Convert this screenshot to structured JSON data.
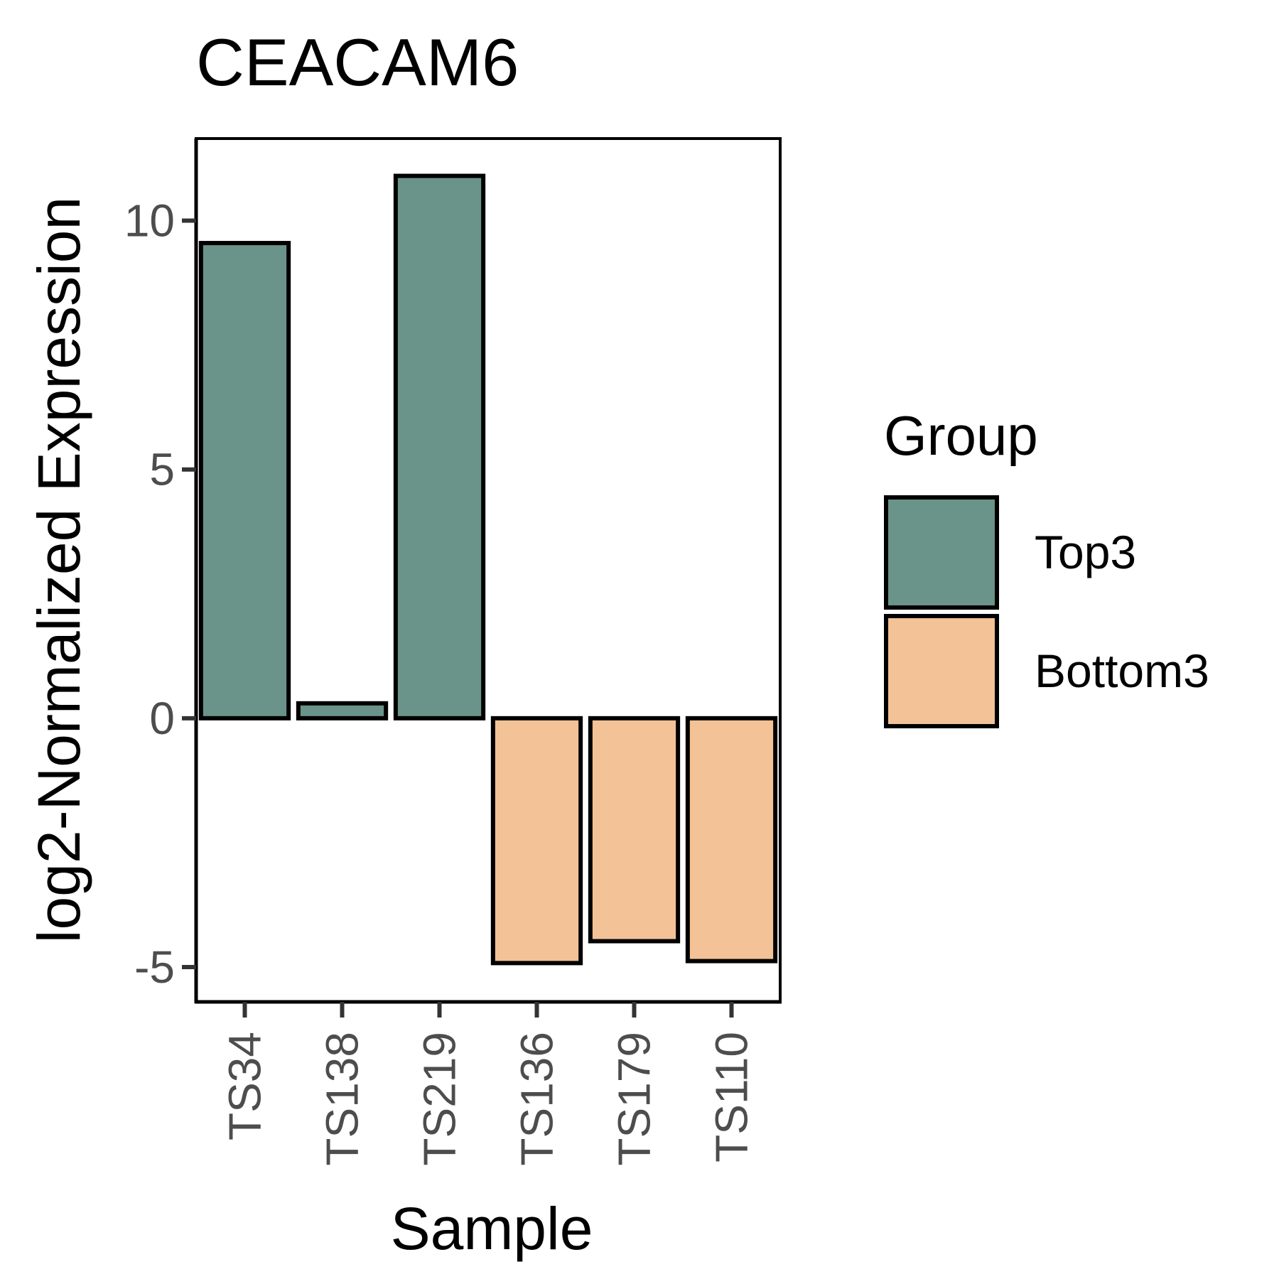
{
  "chart_data": {
    "type": "bar",
    "title": "CEACAM6",
    "xlabel": "Sample",
    "ylabel": "log2-Normalized Expression",
    "categories": [
      "TS34",
      "TS138",
      "TS219",
      "TS136",
      "TS179",
      "TS110"
    ],
    "values": [
      9.55,
      0.3,
      10.9,
      -4.92,
      -4.48,
      -4.88
    ],
    "groups": [
      "Top3",
      "Top3",
      "Top3",
      "Bottom3",
      "Bottom3",
      "Bottom3"
    ],
    "ylim": [
      -5.7,
      11.65
    ],
    "yticks": [
      -5,
      0,
      5,
      10
    ],
    "grid": false,
    "legend": {
      "title": "Group",
      "placement": "right",
      "entries": [
        {
          "label": "Top3",
          "color": "#6a9389"
        },
        {
          "label": "Bottom3",
          "color": "#f3c297"
        }
      ]
    }
  }
}
